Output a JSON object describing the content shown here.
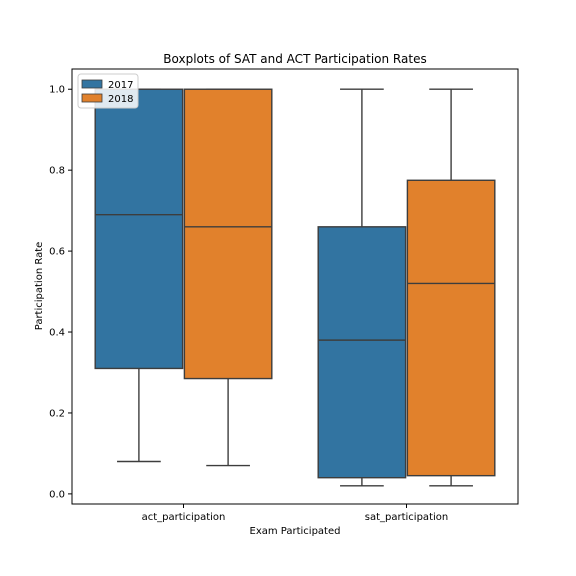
{
  "chart_data": {
    "type": "box",
    "title": "Boxplots of SAT and ACT Participation Rates",
    "xlabel": "Exam Participated",
    "ylabel": "Participation Rate",
    "ylim": [
      -0.025,
      1.05
    ],
    "yticks": [
      0.0,
      0.2,
      0.4,
      0.6,
      0.8,
      1.0
    ],
    "ytick_labels": [
      "0.0",
      "0.2",
      "0.4",
      "0.6",
      "0.8",
      "1.0"
    ],
    "categories": [
      "act_participation",
      "sat_participation"
    ],
    "legend": {
      "placement": "top-left"
    },
    "grid": false,
    "series": [
      {
        "name": "2017",
        "color": "#3274a1",
        "boxes": [
          {
            "category": "act_participation",
            "whisker_low": 0.08,
            "q1": 0.31,
            "median": 0.69,
            "q3": 1.0,
            "whisker_high": 1.0
          },
          {
            "category": "sat_participation",
            "whisker_low": 0.02,
            "q1": 0.04,
            "median": 0.38,
            "q3": 0.66,
            "whisker_high": 1.0
          }
        ]
      },
      {
        "name": "2018",
        "color": "#e1812c",
        "boxes": [
          {
            "category": "act_participation",
            "whisker_low": 0.07,
            "q1": 0.285,
            "median": 0.66,
            "q3": 1.0,
            "whisker_high": 1.0
          },
          {
            "category": "sat_participation",
            "whisker_low": 0.02,
            "q1": 0.045,
            "median": 0.52,
            "q3": 0.775,
            "whisker_high": 1.0
          }
        ]
      }
    ]
  }
}
